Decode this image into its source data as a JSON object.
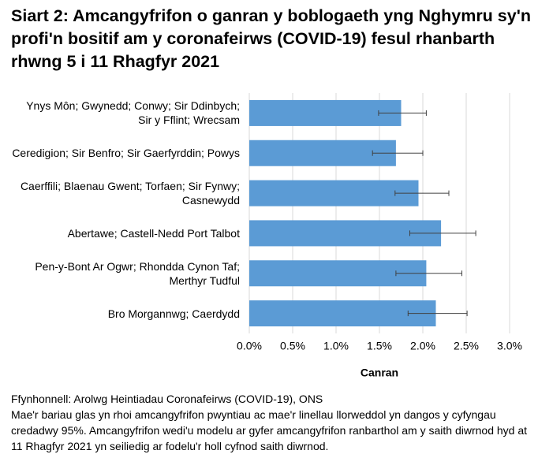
{
  "chart_data": {
    "type": "bar",
    "orientation": "horizontal",
    "title": "Siart 2: Amcangyfrifon o ganran y boblogaeth yng Nghymru sy'n profi'n bositif am y coronafeirws (COVID-19) fesul rhanbarth rhwng 5 i 11 Rhagfyr 2021",
    "xlabel": "Canran",
    "categories": [
      "Ynys Môn; Gwynedd; Conwy; Sir Ddinbych; Sir y Fflint; Wrecsam",
      "Ceredigion; Sir Benfro; Sir Gaerfyrddin; Powys",
      "Caerffili; Blaenau Gwent; Torfaen; Sir Fynwy; Casnewydd",
      "Abertawe; Castell-Nedd Port Talbot",
      "Pen-y-Bont Ar Ogwr; Rhondda Cynon Taf; Merthyr Tudful",
      "Bro Morgannwg; Caerdydd"
    ],
    "values": [
      1.75,
      1.69,
      1.95,
      2.21,
      2.04,
      2.15
    ],
    "lower": [
      1.49,
      1.42,
      1.68,
      1.85,
      1.69,
      1.83
    ],
    "upper": [
      2.04,
      2.0,
      2.3,
      2.61,
      2.45,
      2.51
    ],
    "color": "#5b9bd5",
    "xlim": [
      0,
      3
    ],
    "xticks": [
      {
        "value": 0,
        "label": "0.0%"
      },
      {
        "value": 0.5,
        "label": "0.5%"
      },
      {
        "value": 1,
        "label": "1.0%"
      },
      {
        "value": 1.5,
        "label": "1.5%"
      },
      {
        "value": 2,
        "label": "2.0%"
      },
      {
        "value": 2.5,
        "label": "2.5%"
      },
      {
        "value": 3,
        "label": "3.0%"
      }
    ],
    "grid": true,
    "source": "Ffynhonnell: Arolwg Heintiadau Coronafeirws (COVID-19), ONS",
    "note": "Mae'r bariau glas yn rhoi amcangyfrifon pwyntiau ac mae'r linellau llorweddol yn dangos y cyfyngau credadwy 95%. Amcangyfrifon wedi'u modelu ar gyfer amcangyfrifon ranbarthol am y saith diwrnod hyd at 11 Rhagfyr 2021 yn seiliedig ar fodelu'r holl cyfnod saith diwrnod."
  }
}
